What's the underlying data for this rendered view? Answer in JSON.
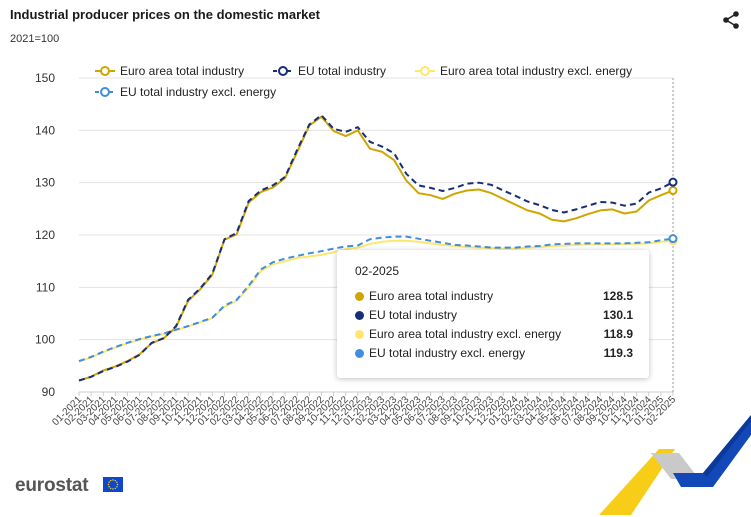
{
  "header": {
    "title": "Industrial producer prices on the domestic market",
    "subtitle": "2021=100",
    "share_icon": "share-icon"
  },
  "branding": {
    "logo_text": "eurostat",
    "flag_icon": "eu-flag-icon",
    "flag_color": "#0e47cb",
    "star_color": "#ffd617"
  },
  "tooltip": {
    "date": "02-2025",
    "rows": [
      {
        "name": "Euro area total industry",
        "value": "128.5",
        "color": "#d0a500"
      },
      {
        "name": "EU total industry",
        "value": "130.1",
        "color": "#172d78"
      },
      {
        "name": "Euro area total industry excl. energy",
        "value": "118.9",
        "color": "#ffe66e"
      },
      {
        "name": "EU total industry excl. energy",
        "value": "119.3",
        "color": "#3f8ee0"
      }
    ]
  },
  "chart_data": {
    "type": "line",
    "title": "Industrial producer prices on the domestic market",
    "subtitle": "2021=100",
    "xlabel": "",
    "ylabel": "",
    "ylim": [
      90,
      150
    ],
    "yticks": [
      90,
      100,
      110,
      120,
      130,
      140,
      150
    ],
    "grid": true,
    "legend_position": "top",
    "x": [
      "01-2021",
      "02-2021",
      "03-2021",
      "04-2021",
      "05-2021",
      "06-2021",
      "07-2021",
      "08-2021",
      "09-2021",
      "10-2021",
      "11-2021",
      "12-2021",
      "01-2022",
      "02-2022",
      "03-2022",
      "04-2022",
      "05-2022",
      "06-2022",
      "07-2022",
      "08-2022",
      "09-2022",
      "10-2022",
      "11-2022",
      "12-2022",
      "01-2023",
      "02-2023",
      "03-2023",
      "04-2023",
      "05-2023",
      "06-2023",
      "07-2023",
      "08-2023",
      "09-2023",
      "10-2023",
      "11-2023",
      "12-2023",
      "01-2024",
      "02-2024",
      "03-2024",
      "04-2024",
      "05-2024",
      "06-2024",
      "07-2024",
      "08-2024",
      "09-2024",
      "10-2024",
      "11-2024",
      "12-2024",
      "01-2025",
      "02-2025"
    ],
    "series": [
      {
        "name": "Euro area total industry",
        "color": "#d0a500",
        "dashed": false,
        "values": [
          92.2,
          92.9,
          94.1,
          94.9,
          95.9,
          97.2,
          99.3,
          100.3,
          102.4,
          107.4,
          109.6,
          112.4,
          119.1,
          120.1,
          126.2,
          128.2,
          129.1,
          130.9,
          135.9,
          140.9,
          142.6,
          139.9,
          138.9,
          140.0,
          136.5,
          135.9,
          134.3,
          130.4,
          128.0,
          127.6,
          126.9,
          127.9,
          128.5,
          128.7,
          128.0,
          126.9,
          125.8,
          124.7,
          124.1,
          122.9,
          122.6,
          123.2,
          124.0,
          124.7,
          124.9,
          124.1,
          124.5,
          126.6,
          127.6,
          128.5
        ]
      },
      {
        "name": "EU total industry",
        "color": "#172d78",
        "dashed": true,
        "values": [
          92.2,
          92.9,
          94.0,
          94.8,
          95.8,
          97.1,
          99.4,
          100.3,
          102.6,
          107.6,
          109.8,
          112.6,
          119.2,
          120.4,
          126.5,
          128.5,
          129.5,
          131.1,
          136.3,
          141.1,
          142.9,
          140.3,
          139.7,
          140.6,
          137.8,
          136.9,
          135.6,
          131.7,
          129.5,
          129.0,
          128.4,
          129.0,
          129.8,
          130.0,
          129.6,
          128.5,
          127.5,
          126.4,
          125.7,
          124.8,
          124.3,
          124.9,
          125.6,
          126.3,
          126.2,
          125.6,
          126.0,
          128.1,
          128.9,
          130.1
        ]
      },
      {
        "name": "Euro area total industry excl. energy",
        "color": "#ffe66e",
        "dashed": false,
        "values": [
          95.8,
          96.6,
          97.6,
          98.5,
          99.3,
          100.0,
          100.6,
          101.1,
          101.8,
          102.5,
          103.3,
          104.1,
          106.3,
          107.4,
          110.0,
          113.1,
          114.4,
          115.0,
          115.6,
          115.9,
          116.2,
          116.7,
          117.3,
          117.6,
          118.3,
          118.7,
          118.9,
          118.9,
          118.7,
          118.4,
          118.1,
          117.9,
          117.7,
          117.6,
          117.5,
          117.4,
          117.4,
          117.6,
          117.7,
          117.9,
          118.0,
          118.1,
          118.2,
          118.2,
          118.2,
          118.3,
          118.3,
          118.4,
          118.7,
          118.9
        ]
      },
      {
        "name": "EU total industry excl. energy",
        "color": "#3f8ee0",
        "dashed": true,
        "values": [
          95.9,
          96.7,
          97.7,
          98.6,
          99.4,
          100.1,
          100.7,
          101.2,
          101.9,
          102.6,
          103.4,
          104.2,
          106.5,
          107.6,
          110.3,
          113.4,
          114.8,
          115.5,
          116.0,
          116.5,
          116.9,
          117.4,
          117.8,
          118.0,
          119.2,
          119.5,
          119.7,
          119.7,
          119.3,
          118.9,
          118.5,
          118.1,
          118.0,
          117.8,
          117.6,
          117.6,
          117.6,
          117.8,
          117.9,
          118.2,
          118.3,
          118.4,
          118.4,
          118.4,
          118.4,
          118.4,
          118.5,
          118.6,
          119.0,
          119.3
        ]
      }
    ]
  }
}
